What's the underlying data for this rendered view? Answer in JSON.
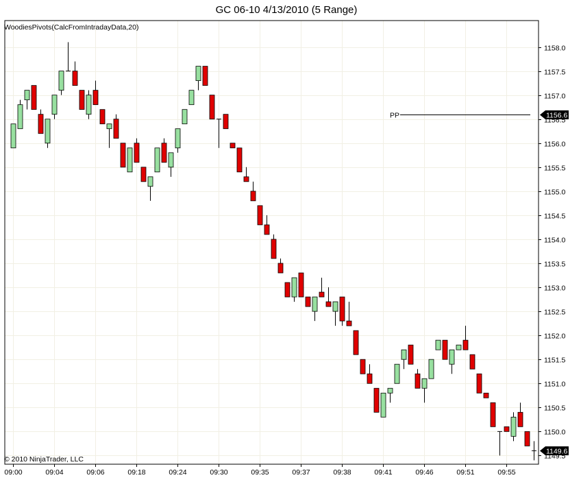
{
  "title": "GC 06-10  4/13/2010 (5 Range)",
  "indicator_label": "WoodiesPivots(CalcFromIntradayData,20)",
  "copyright": "© 2010 NinjaTrader, LLC",
  "pp_label": "PP",
  "pp_tag": "1156.6",
  "last_tag": "1149.6",
  "colors": {
    "up": "#98e0a0",
    "down": "#e00000",
    "grid": "#f1efe4",
    "frame": "#000000",
    "tag": "#000000"
  },
  "chart_data": {
    "type": "candlestick",
    "ylim": [
      1149.32,
      1158.55
    ],
    "y_ticks": [
      "1158.0",
      "1157.5",
      "1157.0",
      "1156.5",
      "1156.0",
      "1155.5",
      "1155.0",
      "1154.5",
      "1154.0",
      "1153.5",
      "1153.0",
      "1152.5",
      "1152.0",
      "1151.5",
      "1151.0",
      "1150.5",
      "1150.0",
      "1149.5"
    ],
    "x_tick_labels": [
      {
        "bar": 0,
        "label": "09:00"
      },
      {
        "bar": 6,
        "label": "09:04"
      },
      {
        "bar": 12,
        "label": "09:06"
      },
      {
        "bar": 18,
        "label": "09:18"
      },
      {
        "bar": 24,
        "label": "09:24"
      },
      {
        "bar": 30,
        "label": "09:30"
      },
      {
        "bar": 36,
        "label": "09:35"
      },
      {
        "bar": 42,
        "label": "09:37"
      },
      {
        "bar": 48,
        "label": "09:38"
      },
      {
        "bar": 54,
        "label": "09:41"
      },
      {
        "bar": 60,
        "label": "09:46"
      },
      {
        "bar": 66,
        "label": "09:51"
      },
      {
        "bar": 72,
        "label": "09:55"
      }
    ],
    "pivot_pp": {
      "value": 1156.6,
      "from_bar": 56.5,
      "to_bar": 75.5
    },
    "candles": [
      [
        1155.9,
        1156.4,
        1156.4,
        1155.9
      ],
      [
        1156.3,
        1156.8,
        1156.9,
        1156.3
      ],
      [
        1156.9,
        1157.1,
        1157.1,
        1156.7
      ],
      [
        1157.2,
        1156.7,
        1157.2,
        1156.7
      ],
      [
        1156.6,
        1156.2,
        1156.7,
        1156.2
      ],
      [
        1156.0,
        1156.5,
        1156.5,
        1155.9
      ],
      [
        1156.6,
        1157.0,
        1157.0,
        1156.5
      ],
      [
        1157.1,
        1157.5,
        1157.5,
        1157.0
      ],
      [
        1157.5,
        1157.5,
        1158.1,
        1157.5
      ],
      [
        1157.5,
        1157.2,
        1157.7,
        1157.2
      ],
      [
        1157.1,
        1156.7,
        1157.1,
        1156.7
      ],
      [
        1156.6,
        1157.0,
        1157.1,
        1156.5
      ],
      [
        1157.1,
        1156.8,
        1157.3,
        1156.8
      ],
      [
        1156.7,
        1156.4,
        1156.7,
        1156.4
      ],
      [
        1156.3,
        1156.4,
        1156.4,
        1155.9
      ],
      [
        1156.5,
        1156.1,
        1156.6,
        1156.1
      ],
      [
        1156.0,
        1155.5,
        1156.0,
        1155.5
      ],
      [
        1155.4,
        1155.9,
        1155.9,
        1155.4
      ],
      [
        1156.0,
        1155.6,
        1156.1,
        1155.6
      ],
      [
        1155.5,
        1155.2,
        1155.5,
        1155.2
      ],
      [
        1155.1,
        1155.3,
        1155.3,
        1154.8
      ],
      [
        1155.4,
        1155.9,
        1155.9,
        1155.4
      ],
      [
        1156.0,
        1155.6,
        1156.1,
        1155.6
      ],
      [
        1155.5,
        1155.8,
        1155.8,
        1155.3
      ],
      [
        1155.9,
        1156.3,
        1156.3,
        1155.8
      ],
      [
        1156.4,
        1156.7,
        1156.7,
        1156.4
      ],
      [
        1156.8,
        1157.1,
        1157.1,
        1156.8
      ],
      [
        1157.3,
        1157.6,
        1157.6,
        1157.1
      ],
      [
        1157.6,
        1157.2,
        1157.6,
        1157.2
      ],
      [
        1157.0,
        1156.5,
        1157.0,
        1156.5
      ],
      [
        1156.5,
        1156.5,
        1156.5,
        1155.9
      ],
      [
        1156.6,
        1156.3,
        1156.6,
        1156.3
      ],
      [
        1156.0,
        1155.9,
        1156.0,
        1155.9
      ],
      [
        1155.9,
        1155.4,
        1155.9,
        1155.4
      ],
      [
        1155.3,
        1155.2,
        1155.5,
        1155.2
      ],
      [
        1155.0,
        1154.8,
        1155.2,
        1154.8
      ],
      [
        1154.7,
        1154.3,
        1154.7,
        1154.3
      ],
      [
        1154.3,
        1154.1,
        1154.5,
        1154.1
      ],
      [
        1154.0,
        1153.6,
        1154.1,
        1153.6
      ],
      [
        1153.5,
        1153.3,
        1153.6,
        1153.3
      ],
      [
        1153.1,
        1152.8,
        1153.1,
        1152.8
      ],
      [
        1152.8,
        1153.2,
        1153.2,
        1152.7
      ],
      [
        1153.3,
        1152.8,
        1153.3,
        1152.8
      ],
      [
        1152.8,
        1152.6,
        1152.8,
        1152.6
      ],
      [
        1152.5,
        1152.8,
        1152.8,
        1152.3
      ],
      [
        1152.9,
        1152.8,
        1153.2,
        1152.8
      ],
      [
        1152.7,
        1152.6,
        1153.0,
        1152.6
      ],
      [
        1152.5,
        1152.7,
        1152.7,
        1152.2
      ],
      [
        1152.8,
        1152.3,
        1152.8,
        1152.2
      ],
      [
        1152.3,
        1152.2,
        1152.7,
        1152.2
      ],
      [
        1152.1,
        1151.6,
        1152.1,
        1151.6
      ],
      [
        1151.5,
        1151.2,
        1151.5,
        1151.2
      ],
      [
        1151.2,
        1151.0,
        1151.4,
        1151.0
      ],
      [
        1150.9,
        1150.4,
        1150.9,
        1150.4
      ],
      [
        1150.3,
        1150.8,
        1150.8,
        1150.3
      ],
      [
        1150.8,
        1150.9,
        1150.9,
        1150.6
      ],
      [
        1151.0,
        1151.4,
        1151.4,
        1151.0
      ],
      [
        1151.5,
        1151.7,
        1151.7,
        1151.3
      ],
      [
        1151.8,
        1151.4,
        1151.8,
        1151.4
      ],
      [
        1151.2,
        1150.9,
        1151.3,
        1150.9
      ],
      [
        1150.9,
        1151.1,
        1151.1,
        1150.6
      ],
      [
        1151.1,
        1151.5,
        1151.5,
        1151.1
      ],
      [
        1151.7,
        1151.9,
        1151.9,
        1151.7
      ],
      [
        1151.9,
        1151.5,
        1151.9,
        1151.5
      ],
      [
        1151.4,
        1151.7,
        1151.7,
        1151.2
      ],
      [
        1151.7,
        1151.8,
        1151.8,
        1151.7
      ],
      [
        1151.9,
        1151.7,
        1152.2,
        1151.7
      ],
      [
        1151.6,
        1151.3,
        1151.6,
        1151.3
      ],
      [
        1151.2,
        1150.8,
        1151.2,
        1150.8
      ],
      [
        1150.8,
        1150.7,
        1150.8,
        1150.7
      ],
      [
        1150.6,
        1150.1,
        1150.6,
        1150.1
      ],
      [
        1150.0,
        1150.0,
        1150.0,
        1149.5
      ],
      [
        1150.1,
        1150.0,
        1150.1,
        1150.0
      ],
      [
        1149.9,
        1150.3,
        1150.4,
        1149.8
      ],
      [
        1150.4,
        1150.1,
        1150.6,
        1150.1
      ],
      [
        1150.0,
        1149.7,
        1150.0,
        1149.7
      ],
      [
        1149.6,
        1149.6,
        1149.8,
        1149.4
      ]
    ]
  }
}
